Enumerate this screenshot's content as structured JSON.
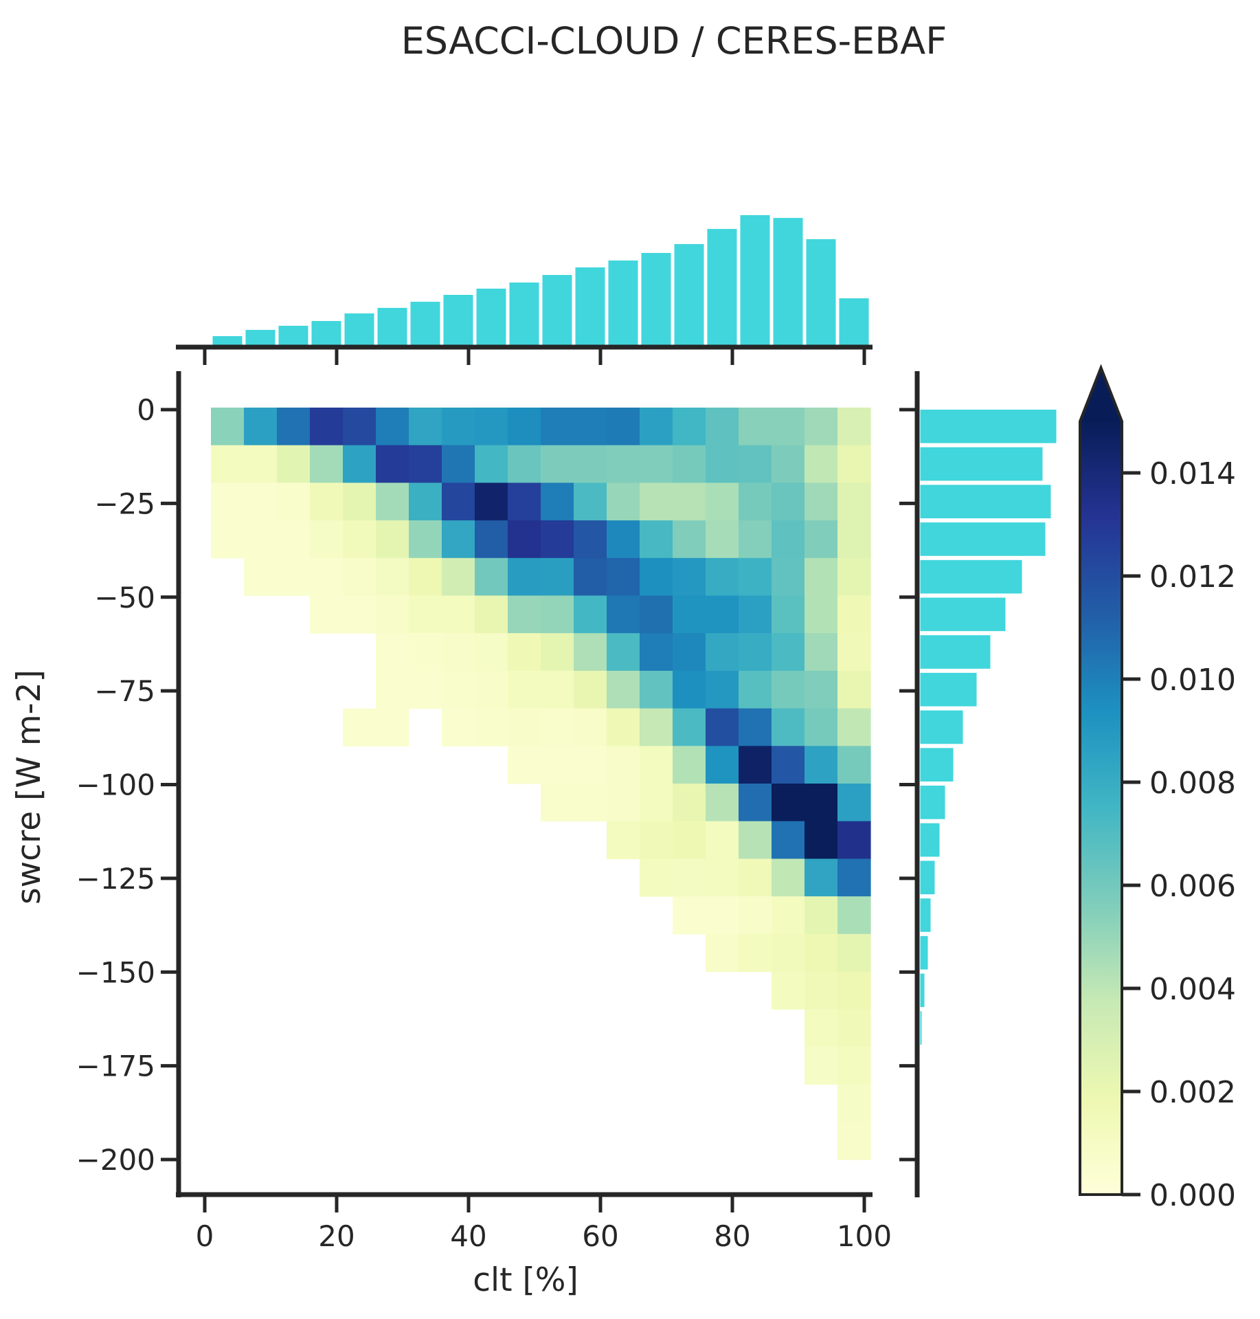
{
  "title": "ESACCI-CLOUD / CERES-EBAF",
  "colors": {
    "marginal_bar": "#40d6dc",
    "axis": "#262626",
    "background": "#ffffff",
    "colorbar_over": "#081d58"
  },
  "chart_data": {
    "type": "heatmap",
    "title": "ESACCI-CLOUD / CERES-EBAF",
    "xlabel": "clt [%]",
    "ylabel": "swcre [W m-2]",
    "x_tick_labels": [
      "0",
      "20",
      "40",
      "60",
      "80",
      "100"
    ],
    "x_tick_values": [
      0,
      20,
      40,
      60,
      80,
      100
    ],
    "y_tick_labels": [
      "0",
      "−25",
      "−50",
      "−75",
      "−100",
      "−125",
      "−150",
      "−175",
      "−200"
    ],
    "y_tick_values": [
      0,
      -25,
      -50,
      -75,
      -100,
      -125,
      -150,
      -175,
      -200
    ],
    "x_range": [
      0,
      100
    ],
    "y_range": [
      0,
      -200
    ],
    "x_bins": {
      "start": 1,
      "size": 5,
      "count": 20
    },
    "y_bins": {
      "start": 0,
      "size": -10,
      "count": 20
    },
    "grid": false,
    "colormap": "YlGnBu",
    "colormap_stops": [
      [
        0.0,
        "#ffffd9"
      ],
      [
        0.125,
        "#edf8b1"
      ],
      [
        0.25,
        "#c7e9b4"
      ],
      [
        0.375,
        "#7fcdbb"
      ],
      [
        0.5,
        "#41b6c4"
      ],
      [
        0.625,
        "#1d91c0"
      ],
      [
        0.75,
        "#225ea8"
      ],
      [
        0.875,
        "#253494"
      ],
      [
        1.0,
        "#081d58"
      ]
    ],
    "vmin": 0.0,
    "vmax": 0.015,
    "colorbar_extend": "max",
    "colorbar_tick_labels": [
      "0.000",
      "0.002",
      "0.004",
      "0.006",
      "0.008",
      "0.010",
      "0.012",
      "0.014"
    ],
    "colorbar_tick_values": [
      0.0,
      0.002,
      0.004,
      0.006,
      0.008,
      0.01,
      0.012,
      0.014
    ],
    "density": [
      [
        0.0053,
        0.0086,
        0.0105,
        0.0128,
        0.0122,
        0.0101,
        0.0084,
        0.0089,
        0.009,
        0.0095,
        0.0101,
        0.0101,
        0.0102,
        0.0086,
        0.0075,
        0.0066,
        0.0054,
        0.0054,
        0.0048,
        0.0029
      ],
      [
        0.0012,
        0.0012,
        0.0024,
        0.0047,
        0.0085,
        0.0128,
        0.0126,
        0.0104,
        0.0074,
        0.0063,
        0.0057,
        0.0057,
        0.0056,
        0.0056,
        0.0059,
        0.0066,
        0.0065,
        0.0057,
        0.0039,
        0.0021
      ],
      [
        0.0005,
        0.0005,
        0.0006,
        0.0015,
        0.0023,
        0.0047,
        0.0078,
        0.0123,
        0.0144,
        0.0126,
        0.0101,
        0.0072,
        0.005,
        0.0042,
        0.0042,
        0.0045,
        0.0059,
        0.0063,
        0.0048,
        0.0026
      ],
      [
        0.0005,
        0.0005,
        0.0005,
        0.0009,
        0.0014,
        0.0023,
        0.0051,
        0.0083,
        0.0113,
        0.0133,
        0.0128,
        0.0116,
        0.0097,
        0.0073,
        0.0056,
        0.0046,
        0.0055,
        0.0066,
        0.0056,
        0.0026
      ],
      [
        null,
        0.0005,
        0.0005,
        0.0005,
        0.0008,
        0.0011,
        0.0018,
        0.0032,
        0.006,
        0.0088,
        0.0087,
        0.0113,
        0.011,
        0.0094,
        0.009,
        0.008,
        0.0077,
        0.0065,
        0.0043,
        0.0023
      ],
      [
        null,
        null,
        null,
        0.0005,
        0.0005,
        0.0008,
        0.0012,
        0.0012,
        0.0021,
        0.005,
        0.0051,
        0.0074,
        0.0103,
        0.0106,
        0.0092,
        0.0092,
        0.0086,
        0.0067,
        0.0043,
        0.0017
      ],
      [
        null,
        null,
        null,
        null,
        null,
        0.0005,
        0.0006,
        0.0008,
        0.0009,
        0.0017,
        0.0023,
        0.0044,
        0.0072,
        0.0101,
        0.0097,
        0.0082,
        0.008,
        0.0072,
        0.0048,
        0.0016
      ],
      [
        null,
        null,
        null,
        null,
        null,
        0.0005,
        0.0005,
        0.0006,
        0.0008,
        0.0012,
        0.0012,
        0.0021,
        0.0044,
        0.0065,
        0.0094,
        0.009,
        0.0068,
        0.0059,
        0.0056,
        0.0021
      ],
      [
        null,
        null,
        null,
        null,
        0.0005,
        0.0005,
        null,
        0.0005,
        0.0006,
        0.0008,
        0.0006,
        0.0008,
        0.0017,
        0.0038,
        0.0072,
        0.0119,
        0.0105,
        0.0071,
        0.0059,
        0.0039
      ],
      [
        null,
        null,
        null,
        null,
        null,
        null,
        null,
        null,
        null,
        0.0005,
        0.0005,
        0.0005,
        0.0008,
        0.0012,
        0.0043,
        0.0092,
        0.0146,
        0.0116,
        0.0085,
        0.0059
      ],
      [
        null,
        null,
        null,
        null,
        null,
        null,
        null,
        null,
        null,
        null,
        0.0006,
        0.0006,
        0.0008,
        0.0012,
        0.0021,
        0.0042,
        0.0107,
        0.0149,
        0.0149,
        0.0086
      ],
      [
        null,
        null,
        null,
        null,
        null,
        null,
        null,
        null,
        null,
        null,
        null,
        null,
        0.0012,
        0.0015,
        0.0018,
        0.0012,
        0.0042,
        0.0105,
        0.0149,
        0.0134
      ],
      [
        null,
        null,
        null,
        null,
        null,
        null,
        null,
        null,
        null,
        null,
        null,
        null,
        null,
        0.0012,
        0.0011,
        0.0012,
        0.0015,
        0.0039,
        0.0084,
        0.0105
      ],
      [
        null,
        null,
        null,
        null,
        null,
        null,
        null,
        null,
        null,
        null,
        null,
        null,
        null,
        null,
        0.0005,
        0.0005,
        0.0008,
        0.0012,
        0.0023,
        0.0045
      ],
      [
        null,
        null,
        null,
        null,
        null,
        null,
        null,
        null,
        null,
        null,
        null,
        null,
        null,
        null,
        null,
        0.0008,
        0.0012,
        0.0014,
        0.0018,
        0.0023
      ],
      [
        null,
        null,
        null,
        null,
        null,
        null,
        null,
        null,
        null,
        null,
        null,
        null,
        null,
        null,
        null,
        null,
        null,
        0.0012,
        0.0015,
        0.0018
      ],
      [
        null,
        null,
        null,
        null,
        null,
        null,
        null,
        null,
        null,
        null,
        null,
        null,
        null,
        null,
        null,
        null,
        null,
        null,
        0.0012,
        0.0015
      ],
      [
        null,
        null,
        null,
        null,
        null,
        null,
        null,
        null,
        null,
        null,
        null,
        null,
        null,
        null,
        null,
        null,
        null,
        null,
        0.0009,
        0.0012
      ],
      [
        null,
        null,
        null,
        null,
        null,
        null,
        null,
        null,
        null,
        null,
        null,
        null,
        null,
        null,
        null,
        null,
        null,
        null,
        null,
        0.0009
      ],
      [
        null,
        null,
        null,
        null,
        null,
        null,
        null,
        null,
        null,
        null,
        null,
        null,
        null,
        null,
        null,
        null,
        null,
        null,
        null,
        0.0008
      ]
    ],
    "marginal_top_rel_heights": [
      0.088,
      0.135,
      0.166,
      0.202,
      0.259,
      0.301,
      0.347,
      0.399,
      0.446,
      0.492,
      0.549,
      0.606,
      0.658,
      0.715,
      0.782,
      0.896,
      1.0,
      0.979,
      0.819,
      0.373
    ],
    "marginal_right_rel_lengths": [
      1.0,
      0.9,
      0.96,
      0.92,
      0.75,
      0.63,
      0.52,
      0.42,
      0.32,
      0.25,
      0.19,
      0.15,
      0.115,
      0.085,
      0.065,
      0.04,
      0.02,
      0.01,
      0.005,
      0.002
    ],
    "legend": "none"
  }
}
